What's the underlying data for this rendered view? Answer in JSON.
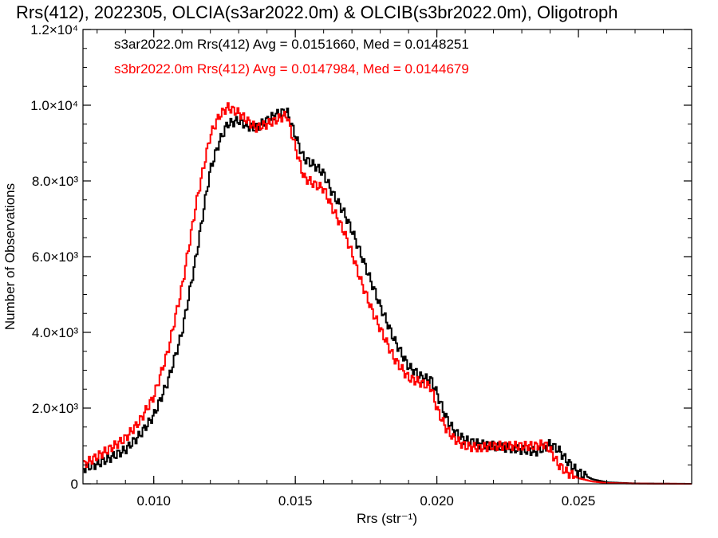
{
  "chart_data": {
    "type": "line",
    "title": "Rrs(412), 2022305, OLCIA(s3ar2022.0m) & OLCIB(s3br2022.0m), Oligotroph",
    "xlabel": "Rrs (str⁻¹)",
    "ylabel": "Number of Observations",
    "xlim": [
      0.0075,
      0.029
    ],
    "ylim": [
      0,
      12000
    ],
    "x_ticks": [
      {
        "value": 0.01,
        "label": "0.010"
      },
      {
        "value": 0.015,
        "label": "0.015"
      },
      {
        "value": 0.02,
        "label": "0.020"
      },
      {
        "value": 0.025,
        "label": "0.025"
      }
    ],
    "y_ticks": [
      {
        "value": 0,
        "label": "0"
      },
      {
        "value": 2000,
        "label": "2.0×10³"
      },
      {
        "value": 4000,
        "label": "4.0×10³"
      },
      {
        "value": 6000,
        "label": "6.0×10³"
      },
      {
        "value": 8000,
        "label": "8.0×10³"
      },
      {
        "value": 10000,
        "label": "1.0×10⁴"
      },
      {
        "value": 12000,
        "label": "1.2×10⁴"
      }
    ],
    "legend_placement": "top-left",
    "series": [
      {
        "name": "s3ar2022.0m Rrs(412) Avg = 0.0151660, Med = 0.0148251",
        "color": "#000000",
        "style": "step",
        "points": [
          [
            0.0075,
            400
          ],
          [
            0.008,
            520
          ],
          [
            0.0085,
            700
          ],
          [
            0.009,
            900
          ],
          [
            0.0095,
            1280
          ],
          [
            0.01,
            1800
          ],
          [
            0.0105,
            2700
          ],
          [
            0.011,
            4000
          ],
          [
            0.0115,
            6000
          ],
          [
            0.0118,
            7400
          ],
          [
            0.012,
            8300
          ],
          [
            0.0123,
            9000
          ],
          [
            0.0126,
            9500
          ],
          [
            0.013,
            9600
          ],
          [
            0.0133,
            9450
          ],
          [
            0.0136,
            9400
          ],
          [
            0.014,
            9600
          ],
          [
            0.0143,
            9750
          ],
          [
            0.0147,
            9850
          ],
          [
            0.015,
            9200
          ],
          [
            0.0153,
            8600
          ],
          [
            0.0157,
            8400
          ],
          [
            0.016,
            8200
          ],
          [
            0.0163,
            7700
          ],
          [
            0.0167,
            7200
          ],
          [
            0.017,
            6700
          ],
          [
            0.0173,
            6100
          ],
          [
            0.0177,
            5300
          ],
          [
            0.018,
            4700
          ],
          [
            0.0185,
            3800
          ],
          [
            0.019,
            3100
          ],
          [
            0.0195,
            2800
          ],
          [
            0.0198,
            2750
          ],
          [
            0.02,
            2400
          ],
          [
            0.0203,
            1800
          ],
          [
            0.0206,
            1400
          ],
          [
            0.021,
            1150
          ],
          [
            0.0215,
            1050
          ],
          [
            0.022,
            1000
          ],
          [
            0.0225,
            950
          ],
          [
            0.023,
            900
          ],
          [
            0.0235,
            850
          ],
          [
            0.0238,
            950
          ],
          [
            0.024,
            1050
          ],
          [
            0.0243,
            900
          ],
          [
            0.0246,
            600
          ],
          [
            0.025,
            300
          ],
          [
            0.0255,
            120
          ],
          [
            0.026,
            40
          ],
          [
            0.027,
            10
          ],
          [
            0.029,
            0
          ]
        ]
      },
      {
        "name": "s3br2022.0m Rrs(412) Avg = 0.0147984, Med = 0.0144679",
        "color": "#ff0000",
        "style": "step",
        "points": [
          [
            0.0075,
            500
          ],
          [
            0.008,
            720
          ],
          [
            0.0085,
            950
          ],
          [
            0.009,
            1200
          ],
          [
            0.0095,
            1650
          ],
          [
            0.01,
            2300
          ],
          [
            0.0105,
            3500
          ],
          [
            0.011,
            5200
          ],
          [
            0.0115,
            7400
          ],
          [
            0.0118,
            8500
          ],
          [
            0.012,
            9200
          ],
          [
            0.0123,
            9700
          ],
          [
            0.0126,
            9950
          ],
          [
            0.013,
            9800
          ],
          [
            0.0133,
            9600
          ],
          [
            0.0136,
            9400
          ],
          [
            0.014,
            9500
          ],
          [
            0.0143,
            9600
          ],
          [
            0.0147,
            9750
          ],
          [
            0.015,
            8900
          ],
          [
            0.0153,
            8100
          ],
          [
            0.0157,
            7900
          ],
          [
            0.016,
            7800
          ],
          [
            0.0163,
            7300
          ],
          [
            0.0167,
            6700
          ],
          [
            0.017,
            6100
          ],
          [
            0.0173,
            5400
          ],
          [
            0.0177,
            4600
          ],
          [
            0.018,
            4100
          ],
          [
            0.0185,
            3300
          ],
          [
            0.019,
            2800
          ],
          [
            0.0195,
            2650
          ],
          [
            0.0198,
            2550
          ],
          [
            0.02,
            2000
          ],
          [
            0.0203,
            1500
          ],
          [
            0.0206,
            1200
          ],
          [
            0.021,
            1000
          ],
          [
            0.0215,
            950
          ],
          [
            0.022,
            1000
          ],
          [
            0.0225,
            1000
          ],
          [
            0.023,
            1000
          ],
          [
            0.0235,
            1000
          ],
          [
            0.0238,
            1050
          ],
          [
            0.024,
            900
          ],
          [
            0.0243,
            500
          ],
          [
            0.0246,
            300
          ],
          [
            0.025,
            150
          ],
          [
            0.0255,
            60
          ],
          [
            0.026,
            20
          ],
          [
            0.027,
            5
          ],
          [
            0.029,
            0
          ]
        ]
      }
    ]
  }
}
